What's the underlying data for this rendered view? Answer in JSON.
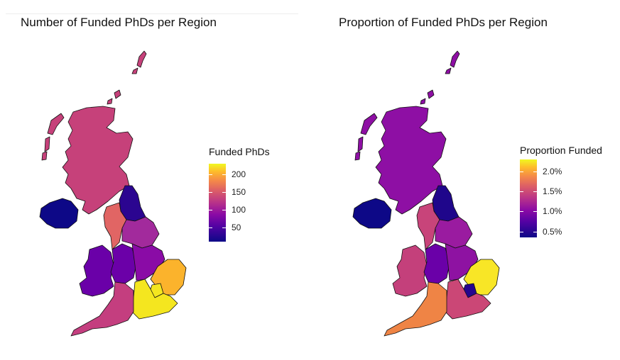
{
  "maps": [
    {
      "title": "Number of Funded PhDs per Region",
      "legend": {
        "title": "Funded PhDs",
        "min": 10,
        "max": 230,
        "ticks": [
          {
            "value": 200,
            "label": "200"
          },
          {
            "value": 150,
            "label": "150"
          },
          {
            "value": 100,
            "label": "100"
          },
          {
            "value": 50,
            "label": "50"
          }
        ]
      },
      "regions": {
        "scotland": {
          "color": "#c6417a"
        },
        "north-east": {
          "color": "#2b0590"
        },
        "north-west": {
          "color": "#e16564"
        },
        "yorkshire": {
          "color": "#a22a9c"
        },
        "northern-ireland": {
          "color": "#0d0887"
        },
        "wales": {
          "color": "#6a00a8"
        },
        "west-midlands": {
          "color": "#6b00a8"
        },
        "east-midlands": {
          "color": "#8a0ba6"
        },
        "east-of-england": {
          "color": "#fbb32c"
        },
        "london": {
          "color": "#f4e61f"
        },
        "south-east": {
          "color": "#f4e61f"
        },
        "south-west": {
          "color": "#c43e7f"
        }
      }
    },
    {
      "title": "Proportion of Funded PhDs per Region",
      "legend": {
        "title": "Proportion Funded",
        "min": 0.35,
        "max": 2.3,
        "ticks": [
          {
            "value": 2.0,
            "label": "2.0%"
          },
          {
            "value": 1.5,
            "label": "1.5%"
          },
          {
            "value": 1.0,
            "label": "1.0%"
          },
          {
            "value": 0.5,
            "label": "0.5%"
          }
        ]
      },
      "regions": {
        "scotland": {
          "color": "#8e0fa4"
        },
        "north-east": {
          "color": "#1f068b"
        },
        "north-west": {
          "color": "#c8447a"
        },
        "yorkshire": {
          "color": "#9a1ba0"
        },
        "northern-ireland": {
          "color": "#0d0887"
        },
        "wales": {
          "color": "#c4407b"
        },
        "west-midlands": {
          "color": "#6a00a8"
        },
        "east-midlands": {
          "color": "#8e12a2"
        },
        "east-of-england": {
          "color": "#f8e626"
        },
        "london": {
          "color": "#24058e"
        },
        "south-east": {
          "color": "#cb4776"
        },
        "south-west": {
          "color": "#ef8445"
        }
      }
    }
  ]
}
